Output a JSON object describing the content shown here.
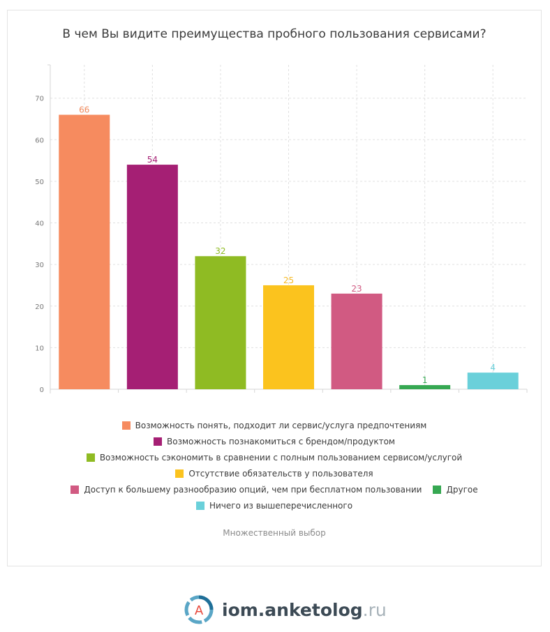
{
  "title": "В чем Вы видите преимущества пробного пользования сервисами?",
  "note": "Множественный выбор",
  "brand": {
    "name": "iom.anketolog",
    "tld": ".ru",
    "logo_letter": "A"
  },
  "chart_data": {
    "type": "bar",
    "title": "В чем Вы видите преимущества пробного пользования сервисами?",
    "xlabel": "",
    "ylabel": "",
    "ylim": [
      0,
      78
    ],
    "yticks": [
      0,
      10,
      20,
      30,
      40,
      50,
      60,
      70
    ],
    "grid": true,
    "legend_position": "bottom",
    "categories": [
      "Возможность понять, подходит ли сервис/услуга предпочтениям",
      "Возможность познакомиться с брендом/продуктом",
      "Возможность сэкономить в сравнении с полным пользованием сервисом/услугой",
      "Отсутствие обязательств у пользователя",
      "Доступ к большему разнообразию опций, чем при бесплатном пользовании",
      "Другое",
      "Ничего из вышеперечисленного"
    ],
    "values": [
      66,
      54,
      32,
      25,
      23,
      1,
      4
    ],
    "colors": [
      "#f68b5f",
      "#a51f74",
      "#8fbb23",
      "#fbc31e",
      "#d15a82",
      "#36a852",
      "#6ad0da"
    ],
    "label_colors": [
      "#f08a5d",
      "#a51f74",
      "#8fbb23",
      "#f5b925",
      "#d15a82",
      "#36a852",
      "#6ad0da"
    ]
  }
}
